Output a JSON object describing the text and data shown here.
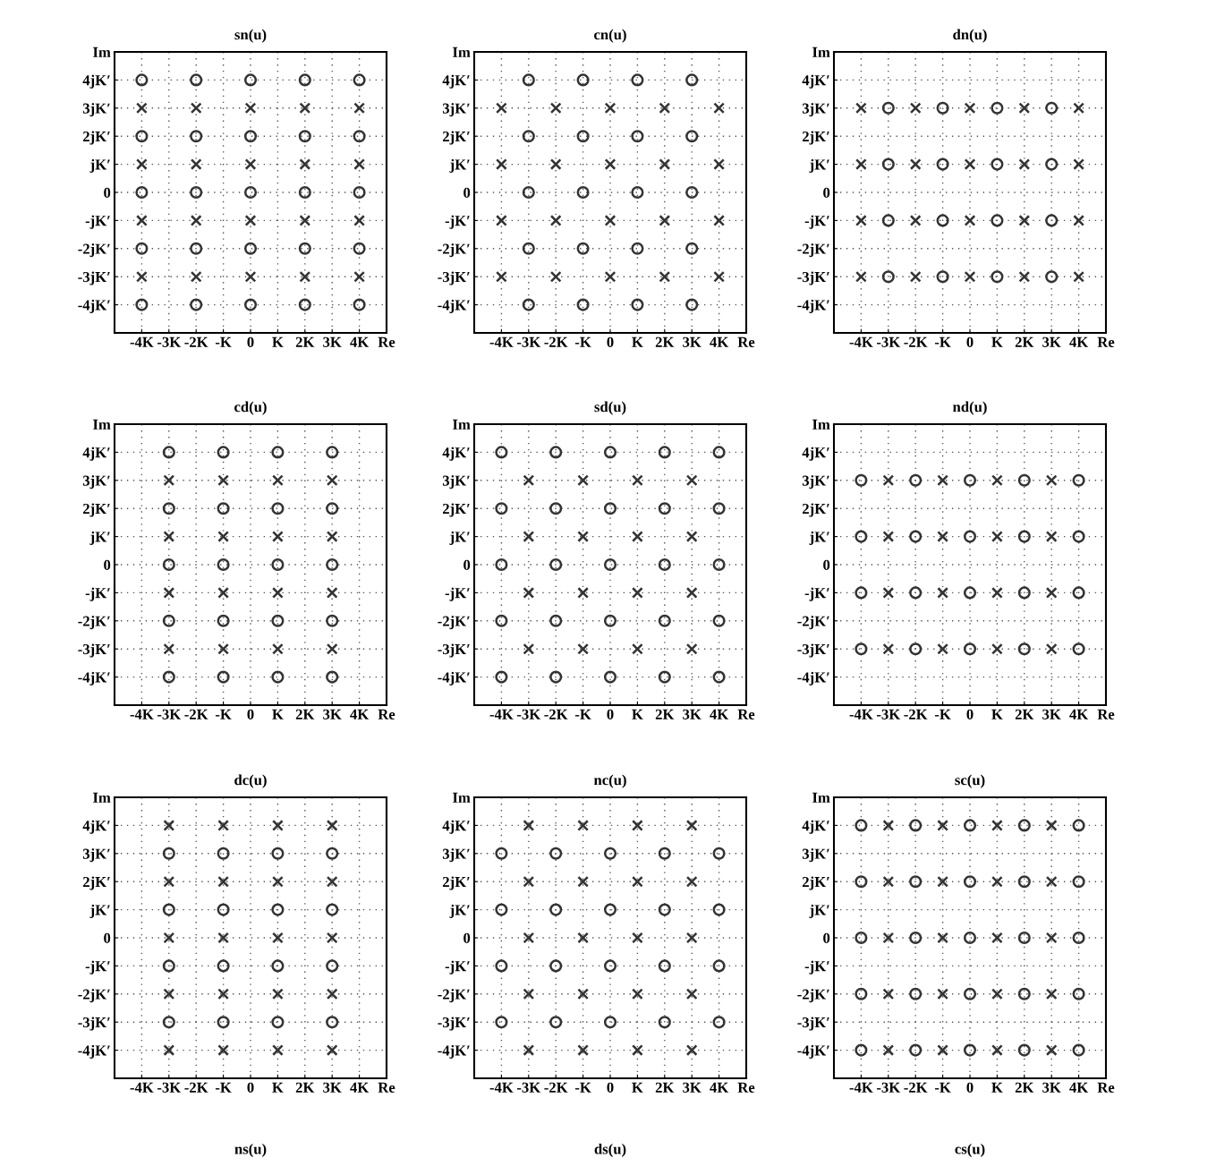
{
  "chart_data": [
    {
      "type": "scatter",
      "title": "sn(u)",
      "xlim": [
        -5,
        5
      ],
      "ylim": [
        -5,
        5
      ],
      "grid": true,
      "xticks": [
        {
          "value": -4,
          "label": "-4K"
        },
        {
          "value": -3,
          "label": "-3K"
        },
        {
          "value": -2,
          "label": "-2K"
        },
        {
          "value": -1,
          "label": "-K"
        },
        0,
        {
          "value": 1,
          "label": "K"
        },
        {
          "value": 2,
          "label": "2K"
        },
        {
          "value": 3,
          "label": "3K"
        },
        {
          "value": 4,
          "label": "4K"
        },
        {
          "value": 5,
          "label": "Re"
        }
      ],
      "yticks": [
        {
          "value": -4,
          "label": "-4jK′"
        },
        {
          "value": -3,
          "label": "-3jK′"
        },
        {
          "value": -2,
          "label": "-2jK′"
        },
        {
          "value": -1,
          "label": "-jK′"
        },
        0,
        {
          "value": 1,
          "label": "jK′"
        },
        {
          "value": 2,
          "label": "2jK′"
        },
        {
          "value": 3,
          "label": "3jK′"
        },
        {
          "value": 4,
          "label": "4jK′"
        },
        {
          "value": 5,
          "label": "Im"
        }
      ],
      "series": [
        {
          "marker": "circle",
          "color": "#333333",
          "x": [
            -4,
            -4,
            -4,
            -4,
            -4,
            -2,
            -2,
            -2,
            -2,
            -2,
            0,
            0,
            0,
            0,
            0,
            2,
            2,
            2,
            2,
            2,
            4,
            4,
            4,
            4,
            4
          ],
          "values": [
            -4,
            -2,
            0,
            2,
            4,
            -4,
            -2,
            0,
            2,
            4,
            -4,
            -2,
            0,
            2,
            4,
            -4,
            -2,
            0,
            2,
            4,
            -4,
            -2,
            0,
            2,
            4
          ]
        },
        {
          "marker": "cross",
          "color": "#333333",
          "x": [
            -4,
            -4,
            -4,
            -4,
            -2,
            -2,
            -2,
            -2,
            0,
            0,
            0,
            0,
            2,
            2,
            2,
            2,
            4,
            4,
            4,
            4
          ],
          "values": [
            -3,
            -1,
            1,
            3,
            -3,
            -1,
            1,
            3,
            -3,
            -1,
            1,
            3,
            -3,
            -1,
            1,
            3,
            -3,
            -1,
            1,
            3
          ]
        }
      ]
    },
    {
      "type": "scatter",
      "title": "cn(u)",
      "xlim": [
        -5,
        5
      ],
      "ylim": [
        -5,
        5
      ],
      "grid": true,
      "xticks": [
        {
          "value": -4,
          "label": "-4K"
        },
        {
          "value": -3,
          "label": "-3K"
        },
        {
          "value": -2,
          "label": "-2K"
        },
        {
          "value": -1,
          "label": "-K"
        },
        0,
        {
          "value": 1,
          "label": "K"
        },
        {
          "value": 2,
          "label": "2K"
        },
        {
          "value": 3,
          "label": "3K"
        },
        {
          "value": 4,
          "label": "4K"
        },
        {
          "value": 5,
          "label": "Re"
        }
      ],
      "yticks": [
        {
          "value": -4,
          "label": "-4jK′"
        },
        {
          "value": -3,
          "label": "-3jK′"
        },
        {
          "value": -2,
          "label": "-2jK′"
        },
        {
          "value": -1,
          "label": "-jK′"
        },
        0,
        {
          "value": 1,
          "label": "jK′"
        },
        {
          "value": 2,
          "label": "2jK′"
        },
        {
          "value": 3,
          "label": "3jK′"
        },
        {
          "value": 4,
          "label": "4jK′"
        },
        {
          "value": 5,
          "label": "Im"
        }
      ],
      "series": [
        {
          "marker": "circle",
          "color": "#333333",
          "x": [
            -3,
            -3,
            -3,
            -3,
            -3,
            -1,
            -1,
            -1,
            -1,
            -1,
            1,
            1,
            1,
            1,
            1,
            3,
            3,
            3,
            3,
            3
          ],
          "values": [
            -4,
            -2,
            0,
            2,
            4,
            -4,
            -2,
            0,
            2,
            4,
            -4,
            -2,
            0,
            2,
            4,
            -4,
            -2,
            0,
            2,
            4
          ]
        },
        {
          "marker": "cross",
          "color": "#333333",
          "x": [
            -4,
            -4,
            -4,
            -4,
            -2,
            -2,
            -2,
            -2,
            0,
            0,
            0,
            0,
            2,
            2,
            2,
            2,
            4,
            4,
            4,
            4
          ],
          "values": [
            -3,
            -1,
            1,
            3,
            -3,
            -1,
            1,
            3,
            -3,
            -1,
            1,
            3,
            -3,
            -1,
            1,
            3,
            -3,
            -1,
            1,
            3
          ]
        }
      ]
    },
    {
      "type": "scatter",
      "title": "dn(u)",
      "xlim": [
        -5,
        5
      ],
      "ylim": [
        -5,
        5
      ],
      "grid": true,
      "xticks": [
        {
          "value": -4,
          "label": "-4K"
        },
        {
          "value": -3,
          "label": "-3K"
        },
        {
          "value": -2,
          "label": "-2K"
        },
        {
          "value": -1,
          "label": "-K"
        },
        0,
        {
          "value": 1,
          "label": "K"
        },
        {
          "value": 2,
          "label": "2K"
        },
        {
          "value": 3,
          "label": "3K"
        },
        {
          "value": 4,
          "label": "4K"
        },
        {
          "value": 5,
          "label": "Re"
        }
      ],
      "yticks": [
        {
          "value": -4,
          "label": "-4jK′"
        },
        {
          "value": -3,
          "label": "-3jK′"
        },
        {
          "value": -2,
          "label": "-2jK′"
        },
        {
          "value": -1,
          "label": "-jK′"
        },
        0,
        {
          "value": 1,
          "label": "jK′"
        },
        {
          "value": 2,
          "label": "2jK′"
        },
        {
          "value": 3,
          "label": "3jK′"
        },
        {
          "value": 4,
          "label": "4jK′"
        },
        {
          "value": 5,
          "label": "Im"
        }
      ],
      "series": [
        {
          "marker": "circle",
          "color": "#333333",
          "x": [
            -3,
            -3,
            -3,
            -3,
            -1,
            -1,
            -1,
            -1,
            1,
            1,
            1,
            1,
            3,
            3,
            3,
            3
          ],
          "values": [
            -3,
            -1,
            1,
            3,
            -3,
            -1,
            1,
            3,
            -3,
            -1,
            1,
            3,
            -3,
            -1,
            1,
            3
          ]
        },
        {
          "marker": "cross",
          "color": "#333333",
          "x": [
            -4,
            -4,
            -4,
            -4,
            -2,
            -2,
            -2,
            -2,
            0,
            0,
            0,
            0,
            2,
            2,
            2,
            2,
            4,
            4,
            4,
            4
          ],
          "values": [
            -3,
            -1,
            1,
            3,
            -3,
            -1,
            1,
            3,
            -3,
            -1,
            1,
            3,
            -3,
            -1,
            1,
            3,
            -3,
            -1,
            1,
            3
          ]
        }
      ]
    },
    {
      "type": "scatter",
      "title": "cd(u)",
      "xlim": [
        -5,
        5
      ],
      "ylim": [
        -5,
        5
      ],
      "grid": true,
      "xticks": [
        {
          "value": -4,
          "label": "-4K"
        },
        {
          "value": -3,
          "label": "-3K"
        },
        {
          "value": -2,
          "label": "-2K"
        },
        {
          "value": -1,
          "label": "-K"
        },
        0,
        {
          "value": 1,
          "label": "K"
        },
        {
          "value": 2,
          "label": "2K"
        },
        {
          "value": 3,
          "label": "3K"
        },
        {
          "value": 4,
          "label": "4K"
        },
        {
          "value": 5,
          "label": "Re"
        }
      ],
      "yticks": [
        {
          "value": -4,
          "label": "-4jK′"
        },
        {
          "value": -3,
          "label": "-3jK′"
        },
        {
          "value": -2,
          "label": "-2jK′"
        },
        {
          "value": -1,
          "label": "-jK′"
        },
        0,
        {
          "value": 1,
          "label": "jK′"
        },
        {
          "value": 2,
          "label": "2jK′"
        },
        {
          "value": 3,
          "label": "3jK′"
        },
        {
          "value": 4,
          "label": "4jK′"
        },
        {
          "value": 5,
          "label": "Im"
        }
      ],
      "series": [
        {
          "marker": "circle",
          "color": "#333333",
          "x": [
            -3,
            -3,
            -3,
            -3,
            -3,
            -1,
            -1,
            -1,
            -1,
            -1,
            1,
            1,
            1,
            1,
            1,
            3,
            3,
            3,
            3,
            3
          ],
          "values": [
            -4,
            -2,
            0,
            2,
            4,
            -4,
            -2,
            0,
            2,
            4,
            -4,
            -2,
            0,
            2,
            4,
            -4,
            -2,
            0,
            2,
            4
          ]
        },
        {
          "marker": "cross",
          "color": "#333333",
          "x": [
            -3,
            -3,
            -3,
            -3,
            -1,
            -1,
            -1,
            -1,
            1,
            1,
            1,
            1,
            3,
            3,
            3,
            3
          ],
          "values": [
            -3,
            -1,
            1,
            3,
            -3,
            -1,
            1,
            3,
            -3,
            -1,
            1,
            3,
            -3,
            -1,
            1,
            3
          ]
        }
      ]
    },
    {
      "type": "scatter",
      "title": "sd(u)",
      "xlim": [
        -5,
        5
      ],
      "ylim": [
        -5,
        5
      ],
      "grid": true,
      "xticks": [
        {
          "value": -4,
          "label": "-4K"
        },
        {
          "value": -3,
          "label": "-3K"
        },
        {
          "value": -2,
          "label": "-2K"
        },
        {
          "value": -1,
          "label": "-K"
        },
        0,
        {
          "value": 1,
          "label": "K"
        },
        {
          "value": 2,
          "label": "2K"
        },
        {
          "value": 3,
          "label": "3K"
        },
        {
          "value": 4,
          "label": "4K"
        },
        {
          "value": 5,
          "label": "Re"
        }
      ],
      "yticks": [
        {
          "value": -4,
          "label": "-4jK′"
        },
        {
          "value": -3,
          "label": "-3jK′"
        },
        {
          "value": -2,
          "label": "-2jK′"
        },
        {
          "value": -1,
          "label": "-jK′"
        },
        0,
        {
          "value": 1,
          "label": "jK′"
        },
        {
          "value": 2,
          "label": "2jK′"
        },
        {
          "value": 3,
          "label": "3jK′"
        },
        {
          "value": 4,
          "label": "4jK′"
        },
        {
          "value": 5,
          "label": "Im"
        }
      ],
      "series": [
        {
          "marker": "circle",
          "color": "#333333",
          "x": [
            -4,
            -4,
            -4,
            -4,
            -4,
            -2,
            -2,
            -2,
            -2,
            -2,
            0,
            0,
            0,
            0,
            0,
            2,
            2,
            2,
            2,
            2,
            4,
            4,
            4,
            4,
            4
          ],
          "values": [
            -4,
            -2,
            0,
            2,
            4,
            -4,
            -2,
            0,
            2,
            4,
            -4,
            -2,
            0,
            2,
            4,
            -4,
            -2,
            0,
            2,
            4,
            -4,
            -2,
            0,
            2,
            4
          ]
        },
        {
          "marker": "cross",
          "color": "#333333",
          "x": [
            -3,
            -3,
            -3,
            -3,
            -1,
            -1,
            -1,
            -1,
            1,
            1,
            1,
            1,
            3,
            3,
            3,
            3
          ],
          "values": [
            -3,
            -1,
            1,
            3,
            -3,
            -1,
            1,
            3,
            -3,
            -1,
            1,
            3,
            -3,
            -1,
            1,
            3
          ]
        }
      ]
    },
    {
      "type": "scatter",
      "title": "nd(u)",
      "xlim": [
        -5,
        5
      ],
      "ylim": [
        -5,
        5
      ],
      "grid": true,
      "xticks": [
        {
          "value": -4,
          "label": "-4K"
        },
        {
          "value": -3,
          "label": "-3K"
        },
        {
          "value": -2,
          "label": "-2K"
        },
        {
          "value": -1,
          "label": "-K"
        },
        0,
        {
          "value": 1,
          "label": "K"
        },
        {
          "value": 2,
          "label": "2K"
        },
        {
          "value": 3,
          "label": "3K"
        },
        {
          "value": 4,
          "label": "4K"
        },
        {
          "value": 5,
          "label": "Re"
        }
      ],
      "yticks": [
        {
          "value": -4,
          "label": "-4jK′"
        },
        {
          "value": -3,
          "label": "-3jK′"
        },
        {
          "value": -2,
          "label": "-2jK′"
        },
        {
          "value": -1,
          "label": "-jK′"
        },
        0,
        {
          "value": 1,
          "label": "jK′"
        },
        {
          "value": 2,
          "label": "2jK′"
        },
        {
          "value": 3,
          "label": "3jK′"
        },
        {
          "value": 4,
          "label": "4jK′"
        },
        {
          "value": 5,
          "label": "Im"
        }
      ],
      "series": [
        {
          "marker": "circle",
          "color": "#333333",
          "x": [
            -4,
            -4,
            -4,
            -4,
            -2,
            -2,
            -2,
            -2,
            0,
            0,
            0,
            0,
            2,
            2,
            2,
            2,
            4,
            4,
            4,
            4
          ],
          "values": [
            -3,
            -1,
            1,
            3,
            -3,
            -1,
            1,
            3,
            -3,
            -1,
            1,
            3,
            -3,
            -1,
            1,
            3,
            -3,
            -1,
            1,
            3
          ]
        },
        {
          "marker": "cross",
          "color": "#333333",
          "x": [
            -3,
            -3,
            -3,
            -3,
            -1,
            -1,
            -1,
            -1,
            1,
            1,
            1,
            1,
            3,
            3,
            3,
            3
          ],
          "values": [
            -3,
            -1,
            1,
            3,
            -3,
            -1,
            1,
            3,
            -3,
            -1,
            1,
            3,
            -3,
            -1,
            1,
            3
          ]
        }
      ]
    },
    {
      "type": "scatter",
      "title": "dc(u)",
      "xlim": [
        -5,
        5
      ],
      "ylim": [
        -5,
        5
      ],
      "grid": true,
      "xticks": [
        {
          "value": -4,
          "label": "-4K"
        },
        {
          "value": -3,
          "label": "-3K"
        },
        {
          "value": -2,
          "label": "-2K"
        },
        {
          "value": -1,
          "label": "-K"
        },
        0,
        {
          "value": 1,
          "label": "K"
        },
        {
          "value": 2,
          "label": "2K"
        },
        {
          "value": 3,
          "label": "3K"
        },
        {
          "value": 4,
          "label": "4K"
        },
        {
          "value": 5,
          "label": "Re"
        }
      ],
      "yticks": [
        {
          "value": -4,
          "label": "-4jK′"
        },
        {
          "value": -3,
          "label": "-3jK′"
        },
        {
          "value": -2,
          "label": "-2jK′"
        },
        {
          "value": -1,
          "label": "-jK′"
        },
        0,
        {
          "value": 1,
          "label": "jK′"
        },
        {
          "value": 2,
          "label": "2jK′"
        },
        {
          "value": 3,
          "label": "3jK′"
        },
        {
          "value": 4,
          "label": "4jK′"
        },
        {
          "value": 5,
          "label": "Im"
        }
      ],
      "series": [
        {
          "marker": "circle",
          "color": "#333333",
          "x": [
            -3,
            -3,
            -3,
            -3,
            -1,
            -1,
            -1,
            -1,
            1,
            1,
            1,
            1,
            3,
            3,
            3,
            3
          ],
          "values": [
            -3,
            -1,
            1,
            3,
            -3,
            -1,
            1,
            3,
            -3,
            -1,
            1,
            3,
            -3,
            -1,
            1,
            3
          ]
        },
        {
          "marker": "cross",
          "color": "#333333",
          "x": [
            -3,
            -3,
            -3,
            -3,
            -3,
            -1,
            -1,
            -1,
            -1,
            -1,
            1,
            1,
            1,
            1,
            1,
            3,
            3,
            3,
            3,
            3
          ],
          "values": [
            -4,
            -2,
            0,
            2,
            4,
            -4,
            -2,
            0,
            2,
            4,
            -4,
            -2,
            0,
            2,
            4,
            -4,
            -2,
            0,
            2,
            4
          ]
        }
      ]
    },
    {
      "type": "scatter",
      "title": "nc(u)",
      "xlim": [
        -5,
        5
      ],
      "ylim": [
        -5,
        5
      ],
      "grid": true,
      "xticks": [
        {
          "value": -4,
          "label": "-4K"
        },
        {
          "value": -3,
          "label": "-3K"
        },
        {
          "value": -2,
          "label": "-2K"
        },
        {
          "value": -1,
          "label": "-K"
        },
        0,
        {
          "value": 1,
          "label": "K"
        },
        {
          "value": 2,
          "label": "2K"
        },
        {
          "value": 3,
          "label": "3K"
        },
        {
          "value": 4,
          "label": "4K"
        },
        {
          "value": 5,
          "label": "Re"
        }
      ],
      "yticks": [
        {
          "value": -4,
          "label": "-4jK′"
        },
        {
          "value": -3,
          "label": "-3jK′"
        },
        {
          "value": -2,
          "label": "-2jK′"
        },
        {
          "value": -1,
          "label": "-jK′"
        },
        0,
        {
          "value": 1,
          "label": "jK′"
        },
        {
          "value": 2,
          "label": "2jK′"
        },
        {
          "value": 3,
          "label": "3jK′"
        },
        {
          "value": 4,
          "label": "4jK′"
        },
        {
          "value": 5,
          "label": "Im"
        }
      ],
      "series": [
        {
          "marker": "circle",
          "color": "#333333",
          "x": [
            -4,
            -4,
            -4,
            -4,
            -2,
            -2,
            -2,
            -2,
            0,
            0,
            0,
            0,
            2,
            2,
            2,
            2,
            4,
            4,
            4,
            4
          ],
          "values": [
            -3,
            -1,
            1,
            3,
            -3,
            -1,
            1,
            3,
            -3,
            -1,
            1,
            3,
            -3,
            -1,
            1,
            3,
            -3,
            -1,
            1,
            3
          ]
        },
        {
          "marker": "cross",
          "color": "#333333",
          "x": [
            -3,
            -3,
            -3,
            -3,
            -3,
            -1,
            -1,
            -1,
            -1,
            -1,
            1,
            1,
            1,
            1,
            1,
            3,
            3,
            3,
            3,
            3
          ],
          "values": [
            -4,
            -2,
            0,
            2,
            4,
            -4,
            -2,
            0,
            2,
            4,
            -4,
            -2,
            0,
            2,
            4,
            -4,
            -2,
            0,
            2,
            4
          ]
        }
      ]
    },
    {
      "type": "scatter",
      "title": "sc(u)",
      "xlim": [
        -5,
        5
      ],
      "ylim": [
        -5,
        5
      ],
      "grid": true,
      "xticks": [
        {
          "value": -4,
          "label": "-4K"
        },
        {
          "value": -3,
          "label": "-3K"
        },
        {
          "value": -2,
          "label": "-2K"
        },
        {
          "value": -1,
          "label": "-K"
        },
        0,
        {
          "value": 1,
          "label": "K"
        },
        {
          "value": 2,
          "label": "2K"
        },
        {
          "value": 3,
          "label": "3K"
        },
        {
          "value": 4,
          "label": "4K"
        },
        {
          "value": 5,
          "label": "Re"
        }
      ],
      "yticks": [
        {
          "value": -4,
          "label": "-4jK′"
        },
        {
          "value": -3,
          "label": "-3jK′"
        },
        {
          "value": -2,
          "label": "-2jK′"
        },
        {
          "value": -1,
          "label": "-jK′"
        },
        0,
        {
          "value": 1,
          "label": "jK′"
        },
        {
          "value": 2,
          "label": "2jK′"
        },
        {
          "value": 3,
          "label": "3jK′"
        },
        {
          "value": 4,
          "label": "4jK′"
        },
        {
          "value": 5,
          "label": "Im"
        }
      ],
      "series": [
        {
          "marker": "circle",
          "color": "#333333",
          "x": [
            -4,
            -4,
            -4,
            -4,
            -4,
            -2,
            -2,
            -2,
            -2,
            -2,
            0,
            0,
            0,
            0,
            0,
            2,
            2,
            2,
            2,
            2,
            4,
            4,
            4,
            4,
            4
          ],
          "values": [
            -4,
            -2,
            0,
            2,
            4,
            -4,
            -2,
            0,
            2,
            4,
            -4,
            -2,
            0,
            2,
            4,
            -4,
            -2,
            0,
            2,
            4,
            -4,
            -2,
            0,
            2,
            4
          ]
        },
        {
          "marker": "cross",
          "color": "#333333",
          "x": [
            -3,
            -3,
            -3,
            -3,
            -3,
            -1,
            -1,
            -1,
            -1,
            -1,
            1,
            1,
            1,
            1,
            1,
            3,
            3,
            3,
            3,
            3
          ],
          "values": [
            -4,
            -2,
            0,
            2,
            4,
            -4,
            -2,
            0,
            2,
            4,
            -4,
            -2,
            0,
            2,
            4,
            -4,
            -2,
            0,
            2,
            4
          ]
        }
      ]
    },
    {
      "type": "other",
      "title": "ns(u)"
    },
    {
      "type": "other",
      "title": "ds(u)"
    },
    {
      "type": "other",
      "title": "cs(u)"
    }
  ]
}
